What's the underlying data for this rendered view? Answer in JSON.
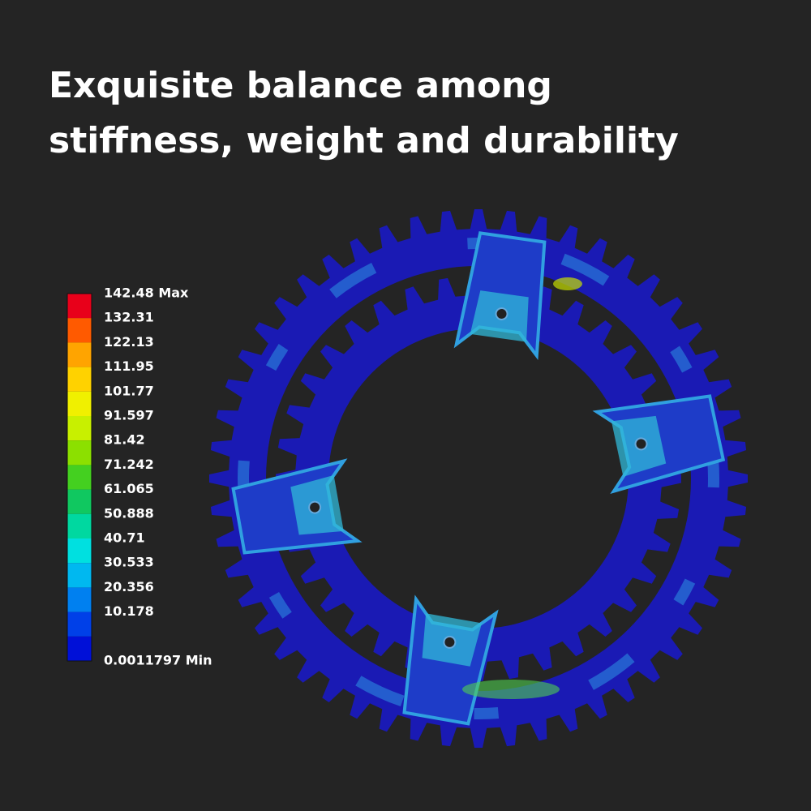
{
  "headline": [
    "Exquisite balance among",
    "stiffness, weight and durability"
  ],
  "legend": {
    "labels": [
      "142.48 Max",
      "132.31",
      "122.13",
      "111.95",
      "101.77",
      "91.597",
      "81.42",
      "71.242",
      "61.065",
      "50.888",
      "40.71",
      "30.533",
      "20.356",
      "10.178",
      "0.0011797 Min"
    ]
  }
}
